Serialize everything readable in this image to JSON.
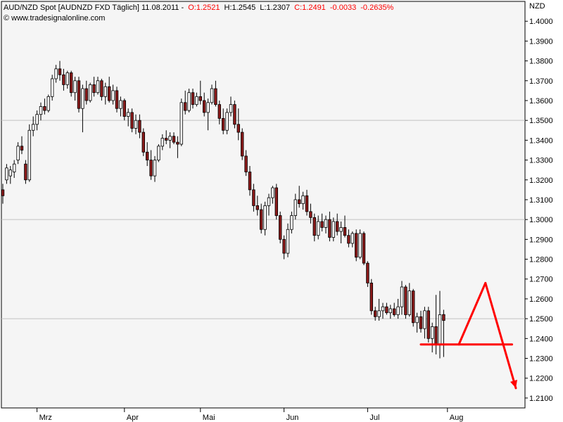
{
  "header": {
    "instrument": "AUD/NZD Spot [AUDNZD FXD  Täglich] 11.08.2011 -",
    "open": "O:1.2521",
    "high": "H:1.2545",
    "low": "L:1.2307",
    "close": "C:1.2491",
    "change": "-0.0033",
    "change_pct": "-0.2635%",
    "watermark": "© www.tradesignalonline.com",
    "currency": "NZD"
  },
  "colors": {
    "bull": "#ffffff",
    "bear": "#8b1a1a",
    "grid": "#c0c0c0",
    "annotation": "#ff0000",
    "change": "#ff0000",
    "plot_bg": "#f5f5f5"
  },
  "chart_data": {
    "type": "candlestick",
    "title": "AUD/NZD Spot",
    "ylabel": "NZD",
    "ylim": [
      1.205,
      1.41
    ],
    "y_ticks": [
      "1.4000",
      "1.3900",
      "1.3800",
      "1.3700",
      "1.3600",
      "1.3500",
      "1.3400",
      "1.3300",
      "1.3200",
      "1.3100",
      "1.3000",
      "1.2900",
      "1.2800",
      "1.2700",
      "1.2600",
      "1.2500",
      "1.2400",
      "1.2300",
      "1.2200",
      "1.2100"
    ],
    "y_gridlines": [
      1.35,
      1.3,
      1.25
    ],
    "x_ticks": [
      {
        "label": "Mrz",
        "index": 9
      },
      {
        "label": "Apr",
        "index": 32
      },
      {
        "label": "Mai",
        "index": 52
      },
      {
        "label": "Jun",
        "index": 74
      },
      {
        "label": "Jul",
        "index": 96
      },
      {
        "label": "Aug",
        "index": 117
      }
    ],
    "candles": [
      [
        1.315,
        1.318,
        1.308,
        1.312
      ],
      [
        1.32,
        1.328,
        1.318,
        1.326
      ],
      [
        1.322,
        1.327,
        1.318,
        1.325
      ],
      [
        1.324,
        1.33,
        1.321,
        1.328
      ],
      [
        1.33,
        1.339,
        1.328,
        1.337
      ],
      [
        1.337,
        1.342,
        1.333,
        1.335
      ],
      [
        1.328,
        1.33,
        1.318,
        1.32
      ],
      [
        1.32,
        1.348,
        1.319,
        1.345
      ],
      [
        1.345,
        1.352,
        1.342,
        1.348
      ],
      [
        1.348,
        1.355,
        1.345,
        1.353
      ],
      [
        1.353,
        1.359,
        1.35,
        1.357
      ],
      [
        1.357,
        1.361,
        1.353,
        1.355
      ],
      [
        1.355,
        1.363,
        1.354,
        1.362
      ],
      [
        1.362,
        1.373,
        1.36,
        1.371
      ],
      [
        1.371,
        1.378,
        1.369,
        1.376
      ],
      [
        1.376,
        1.38,
        1.37,
        1.373
      ],
      [
        1.373,
        1.376,
        1.365,
        1.368
      ],
      [
        1.368,
        1.375,
        1.366,
        1.374
      ],
      [
        1.374,
        1.375,
        1.362,
        1.364
      ],
      [
        1.364,
        1.372,
        1.36,
        1.37
      ],
      [
        1.37,
        1.372,
        1.354,
        1.356
      ],
      [
        1.356,
        1.368,
        1.344,
        1.366
      ],
      [
        1.366,
        1.37,
        1.358,
        1.36
      ],
      [
        1.36,
        1.369,
        1.359,
        1.368
      ],
      [
        1.368,
        1.372,
        1.362,
        1.364
      ],
      [
        1.364,
        1.372,
        1.363,
        1.37
      ],
      [
        1.37,
        1.371,
        1.36,
        1.362
      ],
      [
        1.362,
        1.369,
        1.358,
        1.367
      ],
      [
        1.367,
        1.372,
        1.359,
        1.36
      ],
      [
        1.36,
        1.368,
        1.358,
        1.365
      ],
      [
        1.365,
        1.367,
        1.354,
        1.356
      ],
      [
        1.356,
        1.362,
        1.352,
        1.36
      ],
      [
        1.36,
        1.361,
        1.35,
        1.352
      ],
      [
        1.352,
        1.356,
        1.347,
        1.354
      ],
      [
        1.354,
        1.356,
        1.344,
        1.346
      ],
      [
        1.346,
        1.353,
        1.343,
        1.35
      ],
      [
        1.35,
        1.353,
        1.341,
        1.344
      ],
      [
        1.344,
        1.346,
        1.332,
        1.334
      ],
      [
        1.334,
        1.339,
        1.327,
        1.33
      ],
      [
        1.33,
        1.335,
        1.32,
        1.322
      ],
      [
        1.322,
        1.332,
        1.319,
        1.33
      ],
      [
        1.33,
        1.338,
        1.329,
        1.337
      ],
      [
        1.337,
        1.343,
        1.335,
        1.341
      ],
      [
        1.341,
        1.345,
        1.338,
        1.34
      ],
      [
        1.34,
        1.344,
        1.336,
        1.342
      ],
      [
        1.342,
        1.344,
        1.338,
        1.339
      ],
      [
        1.339,
        1.342,
        1.331,
        1.338
      ],
      [
        1.338,
        1.361,
        1.337,
        1.359
      ],
      [
        1.359,
        1.365,
        1.353,
        1.355
      ],
      [
        1.355,
        1.366,
        1.354,
        1.364
      ],
      [
        1.364,
        1.366,
        1.356,
        1.358
      ],
      [
        1.358,
        1.364,
        1.357,
        1.362
      ],
      [
        1.362,
        1.37,
        1.358,
        1.36
      ],
      [
        1.36,
        1.364,
        1.352,
        1.354
      ],
      [
        1.354,
        1.361,
        1.345,
        1.359
      ],
      [
        1.359,
        1.368,
        1.358,
        1.366
      ],
      [
        1.366,
        1.37,
        1.357,
        1.358
      ],
      [
        1.358,
        1.36,
        1.348,
        1.351
      ],
      [
        1.351,
        1.356,
        1.343,
        1.345
      ],
      [
        1.345,
        1.356,
        1.343,
        1.354
      ],
      [
        1.354,
        1.362,
        1.352,
        1.358
      ],
      [
        1.358,
        1.36,
        1.346,
        1.348
      ],
      [
        1.348,
        1.356,
        1.34,
        1.344
      ],
      [
        1.344,
        1.346,
        1.33,
        1.332
      ],
      [
        1.332,
        1.335,
        1.322,
        1.324
      ],
      [
        1.324,
        1.327,
        1.312,
        1.315
      ],
      [
        1.315,
        1.318,
        1.304,
        1.307
      ],
      [
        1.307,
        1.312,
        1.302,
        1.305
      ],
      [
        1.305,
        1.308,
        1.293,
        1.295
      ],
      [
        1.295,
        1.309,
        1.292,
        1.307
      ],
      [
        1.307,
        1.313,
        1.302,
        1.311
      ],
      [
        1.311,
        1.317,
        1.308,
        1.316
      ],
      [
        1.316,
        1.318,
        1.3,
        1.302
      ],
      [
        1.302,
        1.304,
        1.288,
        1.29
      ],
      [
        1.29,
        1.292,
        1.28,
        1.283
      ],
      [
        1.283,
        1.298,
        1.281,
        1.295
      ],
      [
        1.295,
        1.304,
        1.293,
        1.302
      ],
      [
        1.302,
        1.313,
        1.3,
        1.31
      ],
      [
        1.31,
        1.317,
        1.306,
        1.308
      ],
      [
        1.308,
        1.314,
        1.305,
        1.312
      ],
      [
        1.312,
        1.315,
        1.302,
        1.304
      ],
      [
        1.304,
        1.308,
        1.298,
        1.301
      ],
      [
        1.301,
        1.303,
        1.289,
        1.292
      ],
      [
        1.292,
        1.302,
        1.29,
        1.299
      ],
      [
        1.299,
        1.303,
        1.294,
        1.296
      ],
      [
        1.296,
        1.302,
        1.293,
        1.3
      ],
      [
        1.3,
        1.304,
        1.289,
        1.291
      ],
      [
        1.291,
        1.301,
        1.289,
        1.299
      ],
      [
        1.299,
        1.303,
        1.292,
        1.294
      ],
      [
        1.294,
        1.299,
        1.288,
        1.296
      ],
      [
        1.296,
        1.302,
        1.291,
        1.292
      ],
      [
        1.292,
        1.295,
        1.286,
        1.288
      ],
      [
        1.288,
        1.294,
        1.286,
        1.293
      ],
      [
        1.293,
        1.295,
        1.279,
        1.281
      ],
      [
        1.281,
        1.295,
        1.28,
        1.293
      ],
      [
        1.293,
        1.294,
        1.277,
        1.278
      ],
      [
        1.278,
        1.279,
        1.266,
        1.268
      ],
      [
        1.268,
        1.27,
        1.252,
        1.254
      ],
      [
        1.254,
        1.256,
        1.249,
        1.251
      ],
      [
        1.251,
        1.26,
        1.249,
        1.254
      ],
      [
        1.254,
        1.258,
        1.25,
        1.256
      ],
      [
        1.256,
        1.258,
        1.252,
        1.253
      ],
      [
        1.253,
        1.257,
        1.25,
        1.255
      ],
      [
        1.255,
        1.258,
        1.251,
        1.252
      ],
      [
        1.252,
        1.26,
        1.25,
        1.256
      ],
      [
        1.256,
        1.269,
        1.252,
        1.266
      ],
      [
        1.266,
        1.267,
        1.25,
        1.252
      ],
      [
        1.252,
        1.268,
        1.251,
        1.264
      ],
      [
        1.264,
        1.265,
        1.246,
        1.248
      ],
      [
        1.248,
        1.253,
        1.243,
        1.251
      ],
      [
        1.251,
        1.254,
        1.243,
        1.245
      ],
      [
        1.245,
        1.256,
        1.24,
        1.254
      ],
      [
        1.254,
        1.256,
        1.238,
        1.24
      ],
      [
        1.24,
        1.248,
        1.233,
        1.246
      ],
      [
        1.246,
        1.262,
        1.232,
        1.237
      ],
      [
        1.237,
        1.264,
        1.23,
        1.252
      ],
      [
        1.2521,
        1.2545,
        1.2307,
        1.2491
      ]
    ],
    "annotations": [
      {
        "kind": "line",
        "from": [
          110,
          1.237
        ],
        "to": [
          134,
          1.237
        ]
      },
      {
        "kind": "line",
        "from": [
          120,
          1.237
        ],
        "to": [
          127,
          1.268
        ]
      },
      {
        "kind": "arrow",
        "from": [
          127,
          1.268
        ],
        "to": [
          135,
          1.215
        ]
      }
    ]
  }
}
